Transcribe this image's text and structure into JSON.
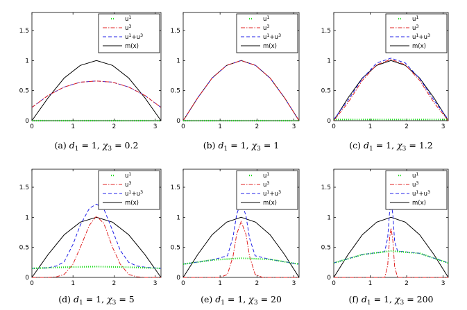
{
  "chart_data": [
    {
      "type": "line",
      "caption": "(a) d1 = 1, χ3 = 0.2",
      "caption_parts": [
        "(a) ",
        "d",
        "1",
        " = 1, ",
        "χ",
        "3",
        " = 0.2"
      ],
      "xlim": [
        0,
        3.1416
      ],
      "ylim": [
        0,
        1.8
      ],
      "xticks": [
        "0",
        "1",
        "2",
        "3"
      ],
      "yticks": [
        "0",
        "0.5",
        "1",
        "1.5"
      ],
      "legend": [
        "u1",
        "u3",
        "u1+u3",
        "m(x)"
      ],
      "series": [
        {
          "name": "u1",
          "x": [
            0,
            0.785,
            1.571,
            2.356,
            3.1416
          ],
          "y": [
            0,
            0,
            0,
            0,
            0
          ]
        },
        {
          "name": "u3",
          "x": [
            0,
            0.393,
            0.785,
            1.178,
            1.571,
            1.963,
            2.356,
            2.749,
            3.1416
          ],
          "y": [
            0.22,
            0.42,
            0.56,
            0.64,
            0.66,
            0.64,
            0.56,
            0.42,
            0.22
          ]
        },
        {
          "name": "u1+u3",
          "x": [
            0,
            0.393,
            0.785,
            1.178,
            1.571,
            1.963,
            2.356,
            2.749,
            3.1416
          ],
          "y": [
            0.22,
            0.42,
            0.56,
            0.64,
            0.66,
            0.64,
            0.56,
            0.42,
            0.22
          ]
        },
        {
          "name": "m(x)",
          "x": [
            0,
            0.393,
            0.785,
            1.178,
            1.571,
            1.963,
            2.356,
            2.749,
            3.1416
          ],
          "y": [
            0,
            0.38,
            0.71,
            0.92,
            1.0,
            0.92,
            0.71,
            0.38,
            0
          ]
        }
      ]
    },
    {
      "type": "line",
      "caption": "(b) d1 = 1, χ3 = 1",
      "caption_parts": [
        "(b) ",
        "d",
        "1",
        " = 1, ",
        "χ",
        "3",
        " = 1"
      ],
      "xlim": [
        0,
        3.1416
      ],
      "ylim": [
        0,
        1.8
      ],
      "xticks": [
        "0",
        "1",
        "2",
        "3"
      ],
      "yticks": [
        "0",
        "0.5",
        "1",
        "1.5"
      ],
      "legend": [
        "u1",
        "u3",
        "u1+u3",
        "m(x)"
      ],
      "series": [
        {
          "name": "u1",
          "x": [
            0,
            0.785,
            1.571,
            2.356,
            3.1416
          ],
          "y": [
            0,
            0,
            0,
            0,
            0
          ]
        },
        {
          "name": "u3",
          "x": [
            0,
            0.393,
            0.785,
            1.178,
            1.571,
            1.963,
            2.356,
            2.749,
            3.1416
          ],
          "y": [
            0,
            0.38,
            0.71,
            0.92,
            1.0,
            0.92,
            0.71,
            0.38,
            0
          ]
        },
        {
          "name": "u1+u3",
          "x": [
            0,
            0.393,
            0.785,
            1.178,
            1.571,
            1.963,
            2.356,
            2.749,
            3.1416
          ],
          "y": [
            0,
            0.38,
            0.71,
            0.92,
            1.0,
            0.92,
            0.71,
            0.38,
            0
          ]
        },
        {
          "name": "m(x)",
          "x": [
            0,
            0.393,
            0.785,
            1.178,
            1.571,
            1.963,
            2.356,
            2.749,
            3.1416
          ],
          "y": [
            0,
            0.38,
            0.71,
            0.92,
            1.0,
            0.92,
            0.71,
            0.38,
            0
          ]
        }
      ]
    },
    {
      "type": "line",
      "caption": "(c) d1 = 1, χ3 = 1.2",
      "caption_parts": [
        "(c) ",
        "d",
        "1",
        " = 1, ",
        "χ",
        "3",
        " = 1.2"
      ],
      "xlim": [
        0,
        3.1416
      ],
      "ylim": [
        0,
        1.8
      ],
      "xticks": [
        "0",
        "1",
        "2",
        "3"
      ],
      "yticks": [
        "0",
        "0.5",
        "1",
        "1.5"
      ],
      "legend": [
        "u1",
        "u3",
        "u1+u3",
        "m(x)"
      ],
      "series": [
        {
          "name": "u1",
          "x": [
            0,
            0.785,
            1.571,
            2.356,
            3.1416
          ],
          "y": [
            0.02,
            0.02,
            0.02,
            0.02,
            0.02
          ]
        },
        {
          "name": "u3",
          "x": [
            0,
            0.393,
            0.785,
            1.178,
            1.571,
            1.963,
            2.356,
            2.749,
            3.1416
          ],
          "y": [
            0,
            0.3,
            0.67,
            0.93,
            1.02,
            0.93,
            0.67,
            0.3,
            0
          ]
        },
        {
          "name": "u1+u3",
          "x": [
            0,
            0.393,
            0.785,
            1.178,
            1.571,
            1.963,
            2.356,
            2.749,
            3.1416
          ],
          "y": [
            0.02,
            0.34,
            0.7,
            0.96,
            1.04,
            0.96,
            0.7,
            0.34,
            0.02
          ]
        },
        {
          "name": "m(x)",
          "x": [
            0,
            0.393,
            0.785,
            1.178,
            1.571,
            1.963,
            2.356,
            2.749,
            3.1416
          ],
          "y": [
            0,
            0.38,
            0.71,
            0.92,
            1.0,
            0.92,
            0.71,
            0.38,
            0
          ]
        }
      ]
    },
    {
      "type": "line",
      "caption": "(d) d1 = 1, χ3 = 5",
      "caption_parts": [
        "(d) ",
        "d",
        "1",
        " = 1, ",
        "χ",
        "3",
        " = 5"
      ],
      "xlim": [
        0,
        3.1416
      ],
      "ylim": [
        0,
        1.8
      ],
      "xticks": [
        "0",
        "1",
        "2",
        "3"
      ],
      "yticks": [
        "0",
        "0.5",
        "1",
        "1.5"
      ],
      "legend": [
        "u1",
        "u3",
        "u1+u3",
        "m(x)"
      ],
      "series": [
        {
          "name": "u1",
          "x": [
            0,
            0.785,
            1.571,
            2.356,
            3.1416
          ],
          "y": [
            0.15,
            0.17,
            0.18,
            0.17,
            0.15
          ]
        },
        {
          "name": "u3",
          "x": [
            0,
            0.393,
            0.6,
            0.785,
            1.0,
            1.178,
            1.4,
            1.571,
            1.75,
            1.963,
            2.15,
            2.356,
            2.55,
            2.749,
            3.1416
          ],
          "y": [
            0,
            0,
            0.01,
            0.05,
            0.22,
            0.5,
            0.87,
            1.02,
            0.9,
            0.5,
            0.22,
            0.05,
            0.01,
            0,
            0
          ]
        },
        {
          "name": "u1+u3",
          "x": [
            0,
            0.393,
            0.6,
            0.785,
            1.0,
            1.178,
            1.4,
            1.571,
            1.75,
            1.963,
            2.15,
            2.356,
            2.55,
            2.749,
            3.1416
          ],
          "y": [
            0.15,
            0.16,
            0.19,
            0.26,
            0.55,
            0.87,
            1.15,
            1.22,
            1.14,
            0.78,
            0.45,
            0.25,
            0.19,
            0.17,
            0.15
          ]
        },
        {
          "name": "m(x)",
          "x": [
            0,
            0.393,
            0.785,
            1.178,
            1.571,
            1.963,
            2.356,
            2.749,
            3.1416
          ],
          "y": [
            0,
            0.38,
            0.71,
            0.92,
            1.0,
            0.92,
            0.71,
            0.38,
            0
          ]
        }
      ]
    },
    {
      "type": "line",
      "caption": "(e) d1 = 1, χ3 = 20",
      "caption_parts": [
        "(e) ",
        "d",
        "1",
        " = 1, ",
        "χ",
        "3",
        " = 20"
      ],
      "xlim": [
        0,
        3.1416
      ],
      "ylim": [
        0,
        1.8
      ],
      "xticks": [
        "0",
        "1",
        "2",
        "3"
      ],
      "yticks": [
        "0",
        "0.5",
        "1",
        "1.5"
      ],
      "legend": [
        "u1",
        "u3",
        "u1+u3",
        "m(x)"
      ],
      "series": [
        {
          "name": "u1",
          "x": [
            0,
            0.785,
            1.571,
            2.356,
            3.1416
          ],
          "y": [
            0.22,
            0.29,
            0.32,
            0.3,
            0.22
          ]
        },
        {
          "name": "u3",
          "x": [
            0,
            1.0,
            1.2,
            1.35,
            1.45,
            1.571,
            1.7,
            1.8,
            1.95,
            2.15,
            3.1416
          ],
          "y": [
            0,
            0,
            0.05,
            0.35,
            0.72,
            0.93,
            0.72,
            0.35,
            0.05,
            0,
            0
          ]
        },
        {
          "name": "u1+u3",
          "x": [
            0,
            0.785,
            1.2,
            1.35,
            1.45,
            1.571,
            1.7,
            1.8,
            1.95,
            2.356,
            3.1416
          ],
          "y": [
            0.22,
            0.29,
            0.36,
            0.67,
            1.05,
            1.26,
            1.03,
            0.65,
            0.36,
            0.3,
            0.22
          ]
        },
        {
          "name": "m(x)",
          "x": [
            0,
            0.393,
            0.785,
            1.178,
            1.571,
            1.963,
            2.356,
            2.749,
            3.1416
          ],
          "y": [
            0,
            0.38,
            0.71,
            0.92,
            1.0,
            0.92,
            0.71,
            0.38,
            0
          ]
        }
      ]
    },
    {
      "type": "line",
      "caption": "(f) d1 = 1, χ3 = 200",
      "caption_parts": [
        "(f) ",
        "d",
        "1",
        " = 1, ",
        "χ",
        "3",
        " = 200"
      ],
      "xlim": [
        0,
        3.1416
      ],
      "ylim": [
        0,
        1.8
      ],
      "xticks": [
        "0",
        "1",
        "2",
        "3"
      ],
      "yticks": [
        "0",
        "0.5",
        "1",
        "1.5"
      ],
      "legend": [
        "u1",
        "u3",
        "u1+u3",
        "m(x)"
      ],
      "series": [
        {
          "name": "u1",
          "x": [
            0,
            0.785,
            1.571,
            2.356,
            3.1416
          ],
          "y": [
            0.24,
            0.38,
            0.44,
            0.4,
            0.24
          ]
        },
        {
          "name": "u3",
          "x": [
            0,
            1.4,
            1.48,
            1.53,
            1.571,
            1.62,
            1.67,
            1.75,
            3.1416
          ],
          "y": [
            0,
            0,
            0.2,
            0.65,
            0.82,
            0.62,
            0.18,
            0,
            0
          ]
        },
        {
          "name": "u1+u3",
          "x": [
            0,
            0.785,
            1.4,
            1.48,
            1.53,
            1.571,
            1.62,
            1.67,
            1.75,
            2.356,
            3.1416
          ],
          "y": [
            0.24,
            0.38,
            0.43,
            0.66,
            1.08,
            1.26,
            1.05,
            0.6,
            0.44,
            0.4,
            0.24
          ]
        },
        {
          "name": "m(x)",
          "x": [
            0,
            0.393,
            0.785,
            1.178,
            1.571,
            1.963,
            2.356,
            2.749,
            3.1416
          ],
          "y": [
            0,
            0.38,
            0.71,
            0.92,
            1.0,
            0.92,
            0.71,
            0.38,
            0
          ]
        }
      ]
    }
  ],
  "series_styles": {
    "u1": {
      "color": "#1fdc1f",
      "style": "dotted"
    },
    "u3": {
      "color": "#e02020",
      "style": "dashdot"
    },
    "u1+u3": {
      "color": "#2020e8",
      "style": "dashed"
    },
    "m(x)": {
      "color": "#000000",
      "style": "solid"
    }
  }
}
